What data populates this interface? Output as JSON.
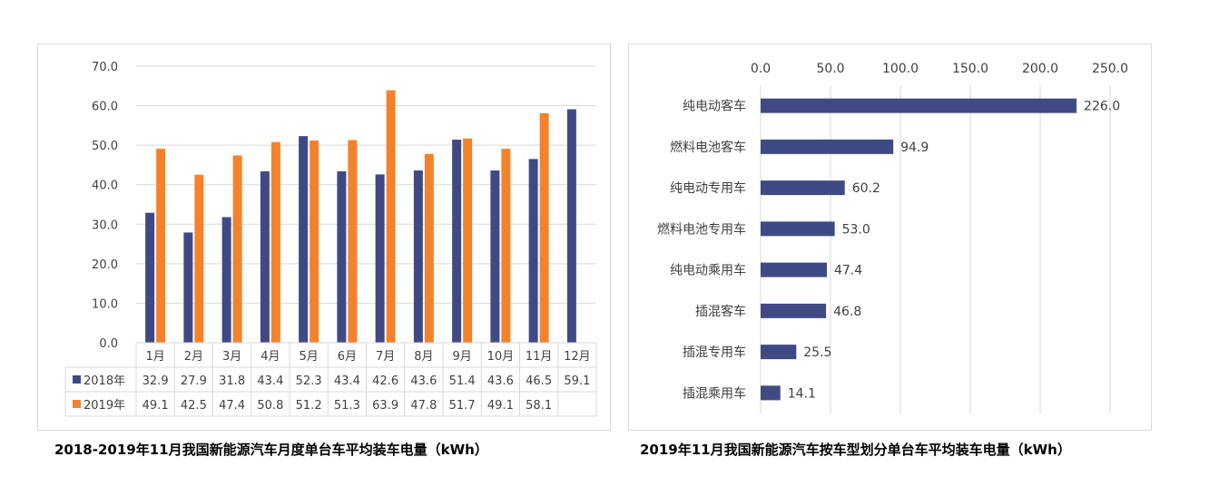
{
  "colors": {
    "series_2018": "#3f4a85",
    "series_2019": "#f5822a",
    "bar_right": "#3f4a85",
    "grid": "#d9d9d9",
    "text": "#404040"
  },
  "captions": {
    "left": "2018-2019年11月我国新能源汽车月度单台车平均装车电量（kWh）",
    "right": "2019年11月我国新能源汽车按车型划分单台车平均装车电量（kWh）"
  },
  "chart_data": [
    {
      "type": "bar",
      "title": "",
      "xlabel": "",
      "ylabel": "",
      "categories": [
        "1月",
        "2月",
        "3月",
        "4月",
        "5月",
        "6月",
        "7月",
        "8月",
        "9月",
        "10月",
        "11月",
        "12月"
      ],
      "series": [
        {
          "name": "2018年",
          "values": [
            32.9,
            27.9,
            31.8,
            43.4,
            52.3,
            43.4,
            42.6,
            43.6,
            51.4,
            43.6,
            46.5,
            59.1
          ]
        },
        {
          "name": "2019年",
          "values": [
            49.1,
            42.5,
            47.4,
            50.8,
            51.2,
            51.3,
            63.9,
            47.8,
            51.7,
            49.1,
            58.1,
            null
          ]
        }
      ],
      "ylim": [
        0,
        70
      ],
      "yticks": [
        "0.0",
        "10.0",
        "20.0",
        "30.0",
        "40.0",
        "50.0",
        "60.0",
        "70.0"
      ],
      "data_table": true,
      "grid": true
    },
    {
      "type": "bar",
      "orientation": "horizontal",
      "title": "",
      "xlabel": "",
      "ylabel": "",
      "categories": [
        "纯电动客车",
        "燃料电池客车",
        "纯电动专用车",
        "燃料电池专用车",
        "纯电动乘用车",
        "插混客车",
        "插混专用车",
        "插混乘用车"
      ],
      "values": [
        226.0,
        94.9,
        60.2,
        53.0,
        47.4,
        46.8,
        25.5,
        14.1
      ],
      "value_labels": [
        "226.0",
        "94.9",
        "60.2",
        "53.0",
        "47.4",
        "46.8",
        "25.5",
        "14.1"
      ],
      "xlim": [
        0,
        250
      ],
      "xticks": [
        "0.0",
        "50.0",
        "100.0",
        "150.0",
        "200.0",
        "250.0"
      ],
      "axis_position": "top",
      "grid": true
    }
  ]
}
